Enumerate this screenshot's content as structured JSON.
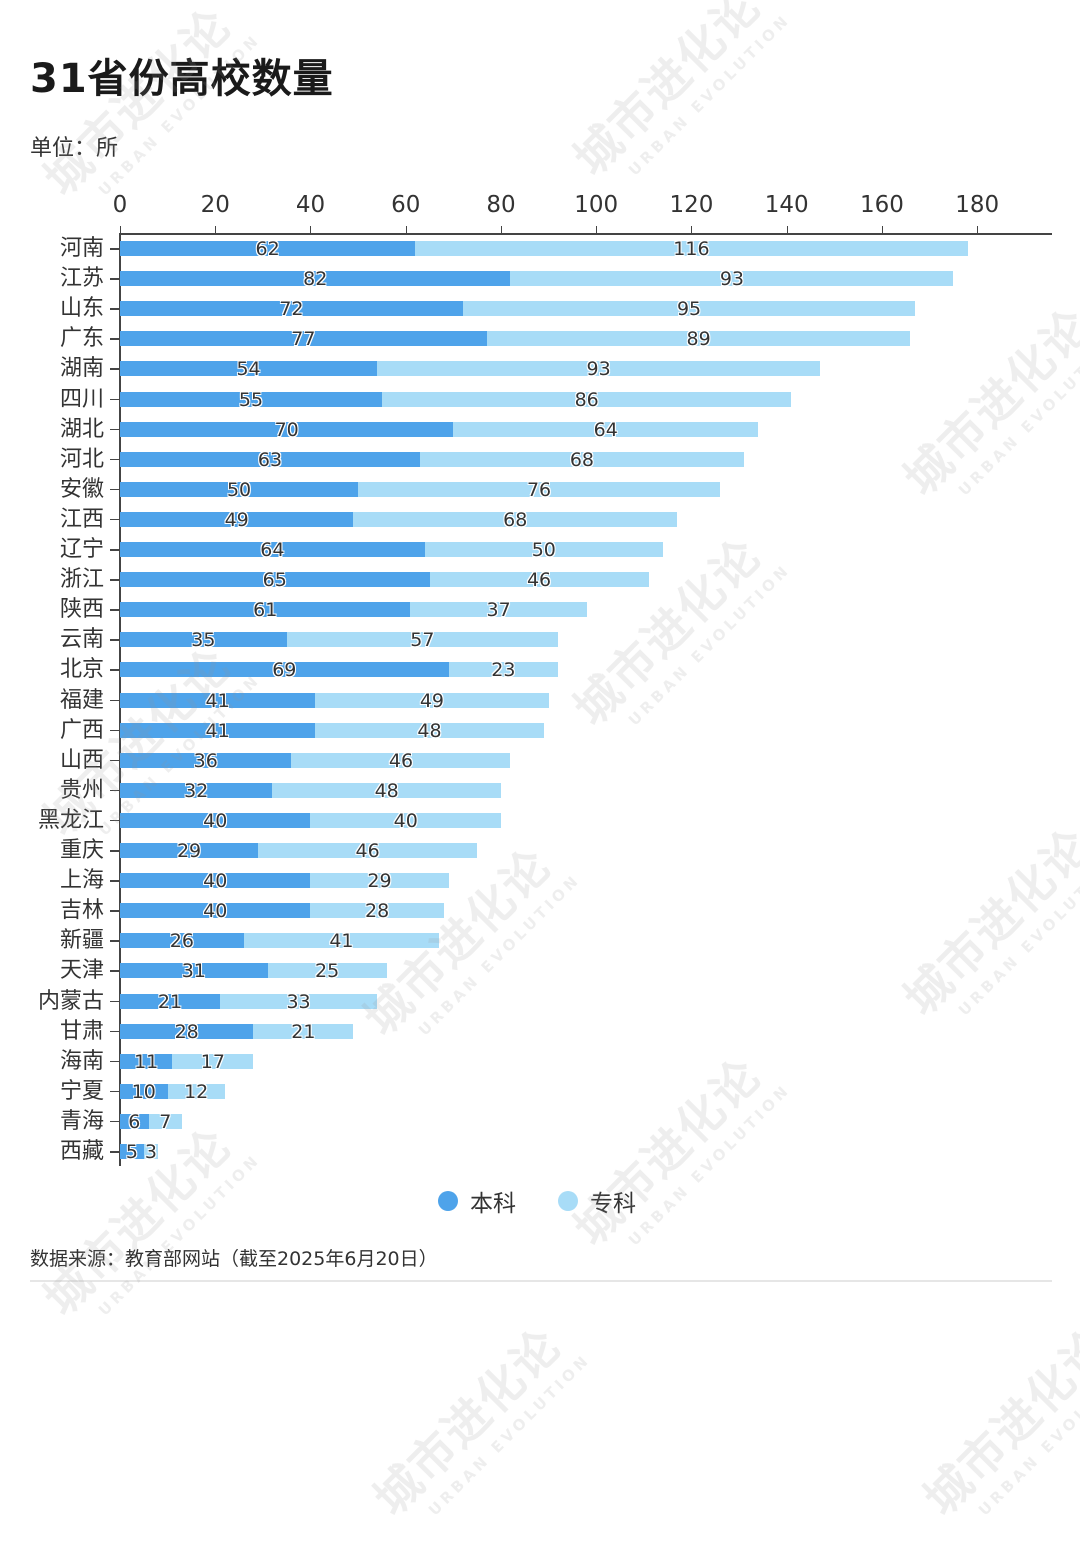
{
  "header": {
    "title": "31省份高校数量",
    "unit": "单位：所"
  },
  "legend": [
    {
      "label": "本科",
      "color": "#4ea3ea"
    },
    {
      "label": "专科",
      "color": "#a8dcf7"
    }
  ],
  "footer": {
    "source": "数据来源：教育部网站（截至2025年6月20日）"
  },
  "watermark": {
    "cn": "城市进化论",
    "en": "URBAN EVOLUTION"
  },
  "axis": {
    "ticks": [
      "0",
      "20",
      "40",
      "60",
      "80",
      "100",
      "120",
      "140",
      "160",
      "180"
    ]
  },
  "chart_data": {
    "type": "bar",
    "orientation": "horizontal",
    "stacked": true,
    "title": "31省份高校数量",
    "subtitle": "单位：所",
    "xlabel": "",
    "ylabel": "",
    "xlim": [
      0,
      196
    ],
    "x_ticks": [
      0,
      20,
      40,
      60,
      80,
      100,
      120,
      140,
      160,
      180
    ],
    "x_axis_position": "top",
    "grid": false,
    "legend_position": "bottom",
    "categories": [
      "河南",
      "江苏",
      "山东",
      "广东",
      "湖南",
      "四川",
      "湖北",
      "河北",
      "安徽",
      "江西",
      "辽宁",
      "浙江",
      "陕西",
      "云南",
      "北京",
      "福建",
      "广西",
      "山西",
      "贵州",
      "黑龙江",
      "重庆",
      "上海",
      "吉林",
      "新疆",
      "天津",
      "内蒙古",
      "甘肃",
      "海南",
      "宁夏",
      "青海",
      "西藏"
    ],
    "series": [
      {
        "name": "本科",
        "color": "#4ea3ea",
        "values": [
          62,
          82,
          72,
          77,
          54,
          55,
          70,
          63,
          50,
          49,
          64,
          65,
          61,
          35,
          69,
          41,
          41,
          36,
          32,
          40,
          29,
          40,
          40,
          26,
          31,
          21,
          28,
          11,
          10,
          6,
          5
        ]
      },
      {
        "name": "专科",
        "color": "#a8dcf7",
        "values": [
          116,
          93,
          95,
          89,
          93,
          86,
          64,
          68,
          76,
          68,
          50,
          46,
          37,
          57,
          23,
          49,
          48,
          46,
          48,
          40,
          46,
          29,
          28,
          41,
          25,
          33,
          21,
          17,
          12,
          7,
          3
        ]
      }
    ],
    "source": "数据来源：教育部网站（截至2025年6月20日）"
  }
}
